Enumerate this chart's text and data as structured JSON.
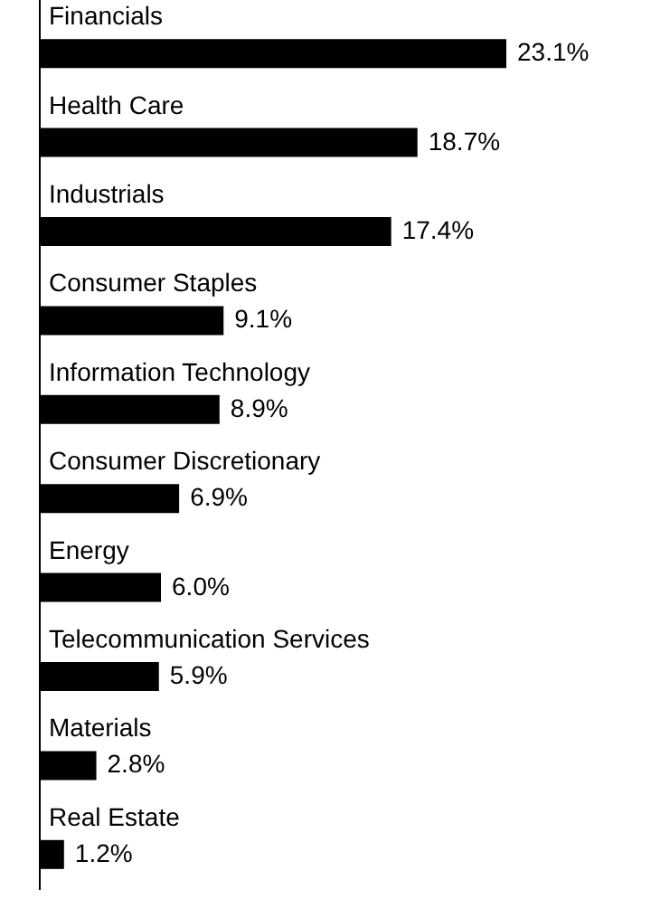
{
  "chart_data": {
    "type": "bar",
    "orientation": "horizontal",
    "categories": [
      "Financials",
      "Health Care",
      "Industrials",
      "Consumer Staples",
      "Information Technology",
      "Consumer Discretionary",
      "Energy",
      "Telecommunication Services",
      "Materials",
      "Real Estate"
    ],
    "values": [
      23.1,
      18.7,
      17.4,
      9.1,
      8.9,
      6.9,
      6.0,
      5.9,
      2.8,
      1.2
    ],
    "value_labels": [
      "23.1%",
      "18.7%",
      "17.4%",
      "9.1%",
      "8.9%",
      "6.9%",
      "6.0%",
      "5.9%",
      "2.8%",
      "1.2%"
    ],
    "color": "#000000",
    "tick_labels": "y"
  }
}
